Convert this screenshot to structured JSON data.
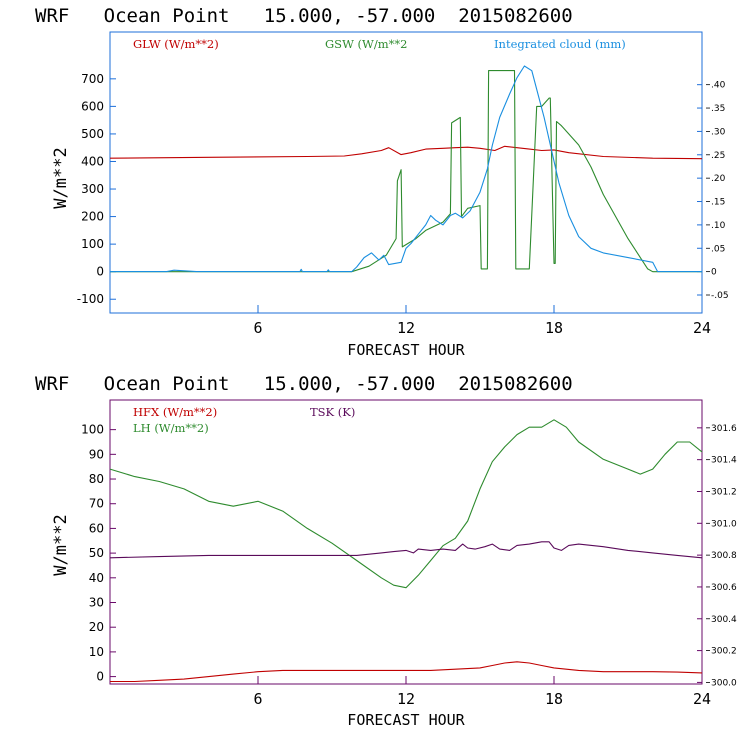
{
  "colors": {
    "axis_top": "#1e6fd9",
    "axis_bottom": "#6a0a6a",
    "glw": "#c00000",
    "gsw": "#2e8b2e",
    "cloud": "#1a8fe0",
    "hfx": "#c00000",
    "lh": "#2e8b2e",
    "tsk": "#5a0a5a",
    "text": "#000000"
  },
  "chart_data": [
    {
      "type": "line",
      "title": "WRF   Ocean Point   15.000, -57.000  2015082600",
      "xlabel": "FORECAST HOUR",
      "ylabel": "W/m**2",
      "xlim": [
        0,
        24
      ],
      "ylim": [
        -150,
        870
      ],
      "x_ticks": [
        6,
        12,
        18,
        24
      ],
      "y_ticks": [
        -100,
        0,
        100,
        200,
        300,
        400,
        500,
        600,
        700
      ],
      "y2lim": [
        -0.0885,
        0.5127
      ],
      "y2_ticks": [
        -0.05,
        0,
        0.05,
        0.1,
        0.15,
        0.2,
        0.25,
        0.3,
        0.35,
        0.4
      ],
      "y2_tick_labels": [
        "-.05",
        "0",
        ".05",
        ".10",
        ".15",
        ".20",
        ".25",
        ".30",
        ".35",
        ".40"
      ],
      "series": [
        {
          "name": "GLW (W/m**2)",
          "color_key": "glw",
          "axis": "left",
          "x": [
            0,
            4,
            8,
            9.5,
            10.2,
            11,
            11.3,
            11.8,
            12.2,
            12.8,
            13.5,
            14,
            14.5,
            15,
            15.6,
            16,
            16.5,
            17,
            17.5,
            18,
            18.6,
            20,
            22,
            24
          ],
          "y": [
            412,
            415,
            418,
            420,
            428,
            440,
            450,
            425,
            432,
            445,
            448,
            450,
            452,
            448,
            440,
            455,
            450,
            445,
            440,
            442,
            432,
            418,
            412,
            410
          ]
        },
        {
          "name": "GSW (W/m**2",
          "color_key": "gsw",
          "axis": "left",
          "x": [
            0,
            9.8,
            10.5,
            11.2,
            11.6,
            11.65,
            11.8,
            11.85,
            12.4,
            12.8,
            13.5,
            13.8,
            13.85,
            14.2,
            14.25,
            14.5,
            15,
            15.05,
            15.3,
            15.35,
            16.4,
            16.45,
            17,
            17.3,
            17.5,
            17.8,
            17.85,
            18.0,
            18.05,
            18.1,
            18.3,
            19,
            19.5,
            20,
            21,
            21.8,
            22,
            24
          ],
          "y": [
            0,
            0,
            20,
            60,
            120,
            330,
            370,
            90,
            120,
            150,
            180,
            210,
            540,
            560,
            200,
            230,
            240,
            10,
            10,
            730,
            730,
            10,
            10,
            600,
            600,
            630,
            630,
            30,
            30,
            545,
            530,
            460,
            380,
            280,
            120,
            10,
            0,
            0
          ]
        },
        {
          "name": "Integrated cloud (mm)",
          "color_key": "cloud",
          "axis": "right",
          "x": [
            0,
            2.3,
            2.6,
            3.5,
            7.7,
            7.75,
            7.8,
            8.8,
            8.85,
            8.9,
            9.8,
            10,
            10.3,
            10.6,
            10.9,
            11.1,
            11.3,
            11.8,
            12,
            12.2,
            12.5,
            12.8,
            13,
            13.2,
            13.5,
            13.8,
            14,
            14.3,
            14.6,
            15,
            15.3,
            15.5,
            15.8,
            16.2,
            16.5,
            16.8,
            17.1,
            17.3,
            17.6,
            17.9,
            18.2,
            18.6,
            19,
            19.5,
            20,
            21,
            22,
            22.2,
            24
          ],
          "y": [
            0,
            0,
            0.003,
            0,
            0,
            0.005,
            0,
            0,
            0.004,
            0,
            0,
            0.01,
            0.03,
            0.04,
            0.025,
            0.035,
            0.015,
            0.02,
            0.05,
            0.06,
            0.08,
            0.1,
            0.12,
            0.11,
            0.1,
            0.12,
            0.125,
            0.115,
            0.13,
            0.17,
            0.22,
            0.27,
            0.33,
            0.38,
            0.415,
            0.44,
            0.43,
            0.39,
            0.33,
            0.26,
            0.19,
            0.12,
            0.075,
            0.05,
            0.04,
            0.03,
            0.02,
            0,
            0
          ]
        }
      ]
    },
    {
      "type": "line",
      "title": "WRF   Ocean Point   15.000, -57.000  2015082600",
      "xlabel": "FORECAST HOUR",
      "ylabel": "W/m**2",
      "xlim": [
        0,
        24
      ],
      "ylim": [
        -3,
        112
      ],
      "x_ticks": [
        6,
        12,
        18,
        24
      ],
      "y_ticks": [
        0,
        10,
        20,
        30,
        40,
        50,
        60,
        70,
        80,
        90,
        100
      ],
      "y2lim": [
        299.99,
        301.775
      ],
      "y2_ticks": [
        300.0,
        300.2,
        300.4,
        300.6,
        300.8,
        301.0,
        301.2,
        301.4,
        301.6
      ],
      "y2_tick_labels": [
        "300.0",
        "300.2",
        "300.4",
        "300.6",
        "300.8",
        "301.0",
        "301.2",
        "301.4",
        "301.6"
      ],
      "series": [
        {
          "name": "HFX (W/m**2)",
          "color_key": "hfx",
          "axis": "left",
          "x": [
            0,
            1,
            2,
            3,
            4,
            5,
            6,
            7,
            8,
            9,
            10,
            11,
            12,
            13,
            14,
            15,
            15.5,
            16,
            16.5,
            17,
            17.5,
            18,
            19,
            20,
            21,
            22,
            23,
            24
          ],
          "y": [
            -2,
            -2,
            -1.5,
            -1,
            0,
            1,
            2,
            2.5,
            2.5,
            2.5,
            2.5,
            2.5,
            2.5,
            2.5,
            3,
            3.5,
            4.5,
            5.5,
            6,
            5.5,
            4.5,
            3.5,
            2.5,
            2,
            2,
            2,
            1.8,
            1.5
          ]
        },
        {
          "name": "LH  (W/m**2)",
          "color_key": "lh",
          "axis": "left",
          "x": [
            0,
            1,
            2,
            3,
            4,
            5,
            6,
            7,
            8,
            9,
            10,
            11,
            11.5,
            12,
            12.5,
            13,
            13.5,
            14,
            14.5,
            15,
            15.5,
            16,
            16.5,
            17,
            17.5,
            18,
            18.5,
            19,
            20,
            21,
            21.5,
            22,
            22.5,
            23,
            23.5,
            24
          ],
          "y": [
            84,
            81,
            79,
            76,
            71,
            69,
            71,
            67,
            60,
            54,
            47,
            40,
            37,
            36,
            41,
            47,
            53,
            56,
            63,
            76,
            87,
            93,
            98,
            101,
            101,
            104,
            101,
            95,
            88,
            84,
            82,
            84,
            90,
            95,
            95,
            91
          ]
        },
        {
          "name": "TSK (K)",
          "color_key": "tsk",
          "axis": "right",
          "x": [
            0,
            2,
            4,
            6,
            8,
            9,
            10,
            11,
            11.5,
            12,
            12.3,
            12.5,
            13,
            13.5,
            14,
            14.3,
            14.5,
            14.8,
            15.2,
            15.5,
            15.8,
            16.2,
            16.5,
            17,
            17.5,
            17.8,
            18,
            18.3,
            18.6,
            19,
            20,
            21,
            22,
            23,
            24
          ],
          "y": [
            300.783,
            300.791,
            300.798,
            300.798,
            300.798,
            300.798,
            300.798,
            300.814,
            300.822,
            300.83,
            300.814,
            300.838,
            300.83,
            300.838,
            300.83,
            300.869,
            300.845,
            300.838,
            300.853,
            300.869,
            300.838,
            300.83,
            300.861,
            300.869,
            300.884,
            300.884,
            300.845,
            300.83,
            300.861,
            300.869,
            300.853,
            300.83,
            300.814,
            300.798,
            300.783
          ]
        }
      ]
    }
  ]
}
